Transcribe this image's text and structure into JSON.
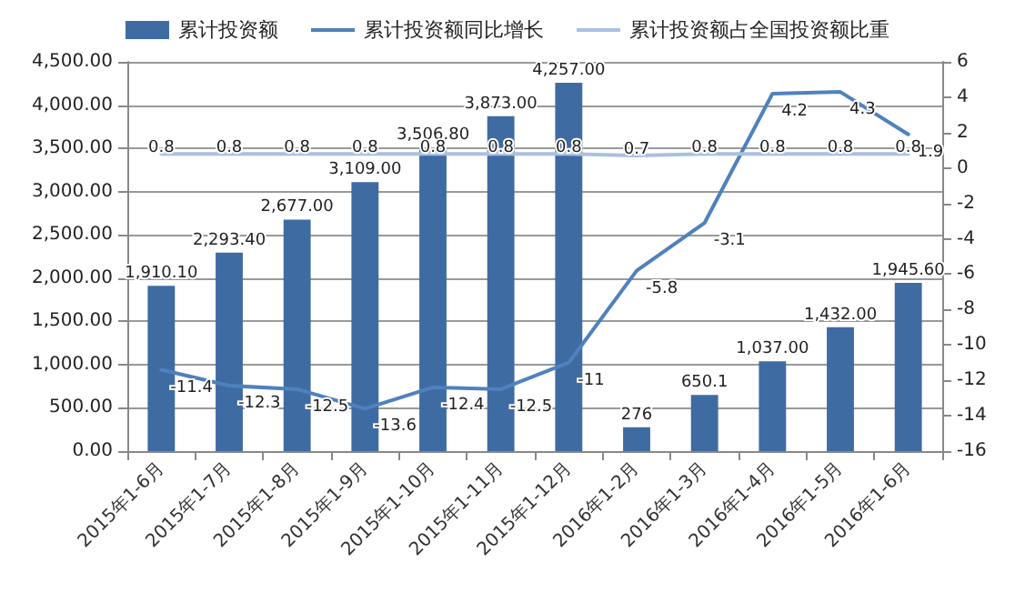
{
  "chart_data": {
    "type": "bar",
    "categories": [
      "2015年1-6月",
      "2015年1-7月",
      "2015年1-8月",
      "2015年1-9月",
      "2015年1-10月",
      "2015年1-11月",
      "2015年1-12月",
      "2016年1-2月",
      "2016年1-3月",
      "2016年1-4月",
      "2016年1-5月",
      "2016年1-6月"
    ],
    "series": [
      {
        "name": "累计投资额",
        "type": "bar",
        "color": "#3f6ba3",
        "values": [
          1910.1,
          2293.4,
          2677.0,
          3109.0,
          3506.8,
          3873.0,
          4257.0,
          276,
          650.1,
          1037.0,
          1432.0,
          1945.6
        ],
        "value_labels": [
          "1,910.10",
          "2,293.40",
          "2,677.00",
          "3,109.00",
          "3,506.80",
          "3,873.00",
          "4,257.00",
          "276",
          "650.1",
          "1,037.00",
          "1,432.00",
          "1,945.60"
        ]
      },
      {
        "name": "累计投资额同比增长",
        "type": "line",
        "axis": "y2",
        "color": "#4f81bd",
        "values": [
          -11.4,
          -12.3,
          -12.5,
          -13.6,
          -12.4,
          -12.5,
          -11,
          -5.8,
          -3.1,
          4.2,
          4.3,
          1.9
        ],
        "value_labels": [
          "-11.4",
          "-12.3",
          "-12.5",
          "-13.6",
          "-12.4",
          "-12.5",
          "-11",
          "-5.8",
          "-3.1",
          "4.2",
          "4.3",
          "1.9"
        ]
      },
      {
        "name": "累计投资额占全国投资额比重",
        "type": "line",
        "axis": "y2",
        "color": "#a9c0e2",
        "values": [
          0.8,
          0.8,
          0.8,
          0.8,
          0.8,
          0.8,
          0.8,
          0.7,
          0.8,
          0.8,
          0.8,
          0.8
        ],
        "value_labels": [
          "0.8",
          "0.8",
          "0.8",
          "0.8",
          "0.8",
          "0.8",
          "0.8",
          "0.7",
          "0.8",
          "0.8",
          "0.8",
          "0.8"
        ]
      }
    ],
    "ylim": [
      0,
      4500
    ],
    "yticks": [
      {
        "value": 0,
        "label": "0.00"
      },
      {
        "value": 500,
        "label": "500.00"
      },
      {
        "value": 1000,
        "label": "1,000.00"
      },
      {
        "value": 1500,
        "label": "1,500.00"
      },
      {
        "value": 2000,
        "label": "2,000.00"
      },
      {
        "value": 2500,
        "label": "2,500.00"
      },
      {
        "value": 3000,
        "label": "3,000.00"
      },
      {
        "value": 3500,
        "label": "3,500.00"
      },
      {
        "value": 4000,
        "label": "4,000.00"
      },
      {
        "value": 4500,
        "label": "4,500.00"
      }
    ],
    "y2lim": [
      -16,
      6
    ],
    "y2ticks": [
      -16,
      -14,
      -12,
      -10,
      -8,
      -6,
      -4,
      -2,
      0,
      2,
      4,
      6
    ],
    "grid": "y",
    "legend": "top",
    "marker": "none",
    "line_style": "solid"
  }
}
